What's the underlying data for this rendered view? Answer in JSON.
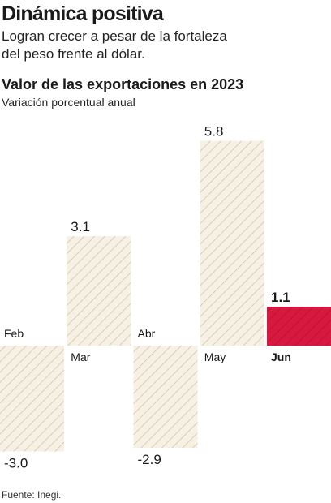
{
  "header": {
    "title": "Dinámica positiva",
    "subtitle": "Logran crecer a pesar de la fortaleza del peso frente al dólar."
  },
  "source": "Fuente: Inegi.",
  "colors": {
    "bar_fill": "#f6f1e4",
    "bar_hatch": "#cbbd9c",
    "highlight_fill": "#d7193f",
    "highlight_hatch": "#b0102e"
  },
  "chart_data": {
    "type": "bar",
    "title": "Valor de las exportaciones en 2023",
    "subtitle": "Variación porcentual anual",
    "categories": [
      "Feb",
      "Mar",
      "Abr",
      "May",
      "Jun"
    ],
    "values": [
      -3.0,
      3.1,
      -2.9,
      5.8,
      1.1
    ],
    "value_labels": [
      "-3.0",
      "3.1",
      "-2.9",
      "5.8",
      "1.1"
    ],
    "highlight": "Jun",
    "ylim": [
      -3.0,
      5.8
    ],
    "grid": false
  }
}
